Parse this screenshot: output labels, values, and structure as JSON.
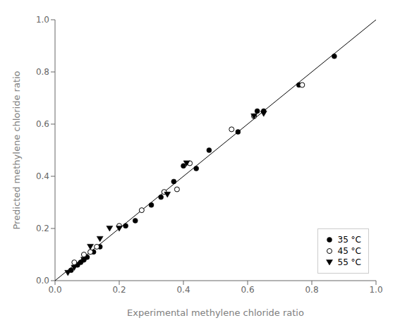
{
  "chart_data": {
    "type": "scatter",
    "title": "",
    "xlabel": "Experimental methylene chloride ratio",
    "ylabel": "Predicted methylene chloride ratio",
    "xlim": [
      0.0,
      1.0
    ],
    "ylim": [
      0.0,
      1.0
    ],
    "xticks": [
      {
        "value": 0.0,
        "label": "0.0"
      },
      0.2,
      0.4,
      0.6,
      0.8,
      {
        "value": 1.0,
        "label": "1.0"
      }
    ],
    "yticks": [
      {
        "value": 0.0,
        "label": "0.0"
      },
      0.2,
      0.4,
      0.6,
      0.8,
      {
        "value": 1.0,
        "label": "1.0"
      }
    ],
    "grid": false,
    "legend": "lower right",
    "diagonal": {
      "x": [
        0.0,
        1.0
      ],
      "y": [
        0.0,
        1.0
      ],
      "color": "black"
    },
    "series": [
      {
        "name": "35 °C",
        "marker": "circle",
        "color": "black",
        "x": [
          0.05,
          0.07,
          0.08,
          0.09,
          0.1,
          0.12,
          0.14,
          0.22,
          0.25,
          0.3,
          0.33,
          0.37,
          0.4,
          0.44,
          0.48,
          0.57,
          0.63,
          0.65,
          0.76,
          0.87
        ],
        "values": [
          0.04,
          0.06,
          0.07,
          0.08,
          0.09,
          0.11,
          0.13,
          0.21,
          0.23,
          0.29,
          0.32,
          0.38,
          0.44,
          0.43,
          0.5,
          0.57,
          0.65,
          0.65,
          0.75,
          0.86
        ]
      },
      {
        "name": "45 °C",
        "marker": "open_circle",
        "color": "black",
        "x": [
          0.06,
          0.09,
          0.11,
          0.13,
          0.2,
          0.27,
          0.34,
          0.38,
          0.42,
          0.55,
          0.62,
          0.77
        ],
        "values": [
          0.07,
          0.1,
          0.11,
          0.13,
          0.21,
          0.27,
          0.34,
          0.35,
          0.45,
          0.58,
          0.63,
          0.75
        ]
      },
      {
        "name": "55 °C",
        "marker": "triangle_down",
        "color": "black",
        "x": [
          0.04,
          0.06,
          0.09,
          0.11,
          0.14,
          0.17,
          0.2,
          0.35,
          0.41,
          0.62,
          0.65
        ],
        "values": [
          0.03,
          0.05,
          0.08,
          0.13,
          0.16,
          0.2,
          0.2,
          0.33,
          0.45,
          0.63,
          0.64
        ]
      }
    ]
  }
}
